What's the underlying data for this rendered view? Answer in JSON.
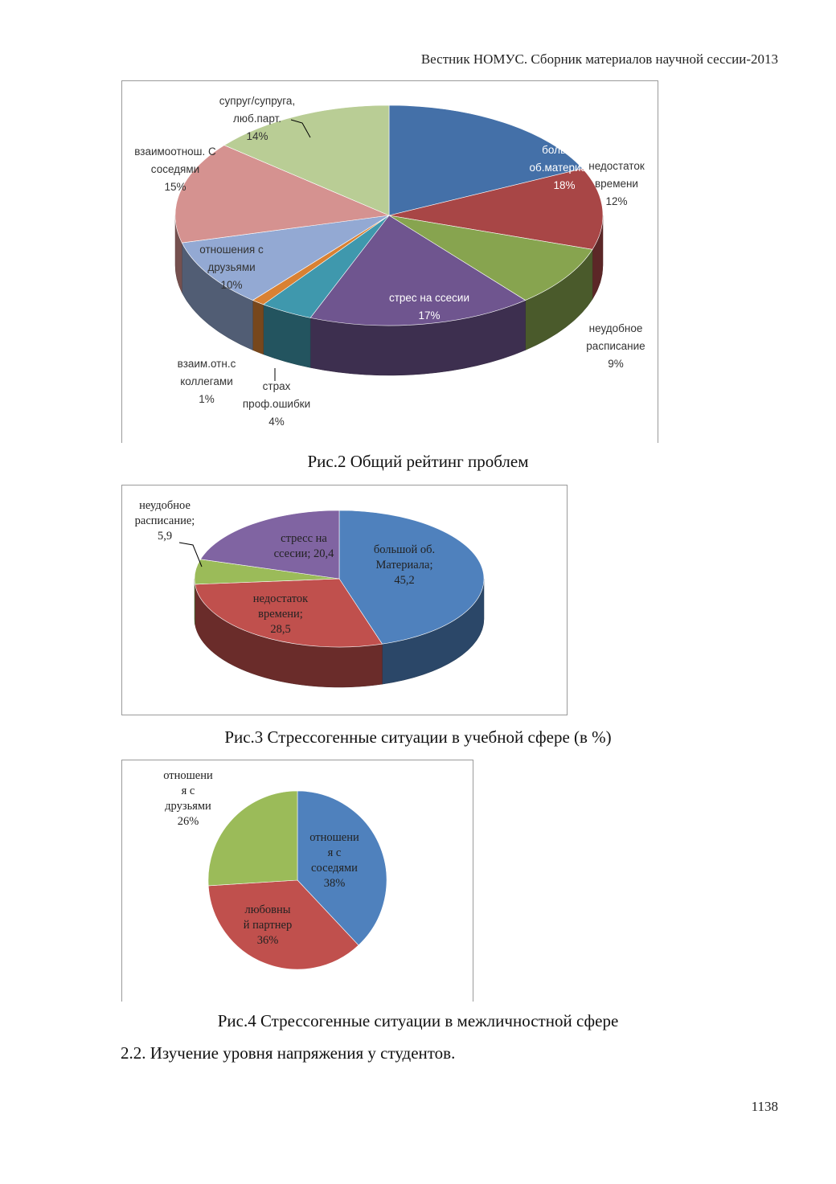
{
  "header": {
    "running_head": "Вестник НОМУС. Сборник материалов научной сессии-2013"
  },
  "figures": [
    {
      "caption": "Рис.2 Общий рейтинг проблем",
      "chart_data": {
        "type": "pie",
        "style": "3d",
        "unit": "%",
        "slices": [
          {
            "label": [
              "большой",
              "об.материала"
            ],
            "value": 18,
            "value_text": "18%",
            "color": "#4470a8"
          },
          {
            "label": [
              "недостаток",
              "времени"
            ],
            "value": 12,
            "value_text": "12%",
            "color": "#a84646"
          },
          {
            "label": [
              "неудобное",
              "расписание"
            ],
            "value": 9,
            "value_text": "9%",
            "color": "#87a44f"
          },
          {
            "label": [
              "стрес на ссесии"
            ],
            "value": 17,
            "value_text": "17%",
            "color": "#6f558f"
          },
          {
            "label": [
              "страх",
              "проф.ошибки"
            ],
            "value": 4,
            "value_text": "4%",
            "color": "#3f98ad"
          },
          {
            "label": [
              "взаим.отн.с",
              "коллегами"
            ],
            "value": 1,
            "value_text": "1%",
            "color": "#d98133"
          },
          {
            "label": [
              "отношения с",
              "друзьями"
            ],
            "value": 10,
            "value_text": "10%",
            "color": "#93a9d3"
          },
          {
            "label": [
              "взаимоотнош. С",
              "соседями"
            ],
            "value": 15,
            "value_text": "15%",
            "color": "#d59290"
          },
          {
            "label": [
              "супруг/супруга,",
              "люб.парт."
            ],
            "value": 14,
            "value_text": "14%",
            "color": "#b9cd95"
          }
        ]
      }
    },
    {
      "caption": "Рис.3 Стрессогенные ситуации в учебной сфере (в %)",
      "chart_data": {
        "type": "pie",
        "style": "3d",
        "unit": "%",
        "slices": [
          {
            "label": [
              "большой об.",
              "Материала;"
            ],
            "value": 45.2,
            "value_text": "45,2",
            "color": "#4f81bd"
          },
          {
            "label": [
              "недостаток",
              "времени;"
            ],
            "value": 28.5,
            "value_text": "28,5",
            "color": "#c0504d"
          },
          {
            "label": [
              "неудобное",
              "расписание;"
            ],
            "value": 5.9,
            "value_text": "5,9",
            "color": "#9bbb59"
          },
          {
            "label": [
              "стресс на",
              "ссесии; 20,4"
            ],
            "value": 20.4,
            "value_text": "",
            "color": "#8064a2"
          }
        ]
      }
    },
    {
      "caption": "Рис.4 Стрессогенные ситуации в межличностной сфере",
      "chart_data": {
        "type": "pie",
        "style": "2d",
        "unit": "%",
        "slices": [
          {
            "label": [
              "отношени",
              "я с",
              "соседями"
            ],
            "value": 38,
            "value_text": "38%",
            "color": "#4f81bd"
          },
          {
            "label": [
              "любовны",
              "й партнер"
            ],
            "value": 36,
            "value_text": "36%",
            "color": "#c0504d"
          },
          {
            "label": [
              "отношени",
              "я с",
              "друзьями"
            ],
            "value": 26,
            "value_text": "26%",
            "color": "#9bbb59"
          }
        ]
      }
    }
  ],
  "section_heading": "2.2. Изучение уровня напряжения у студентов.",
  "page_number": "1138"
}
